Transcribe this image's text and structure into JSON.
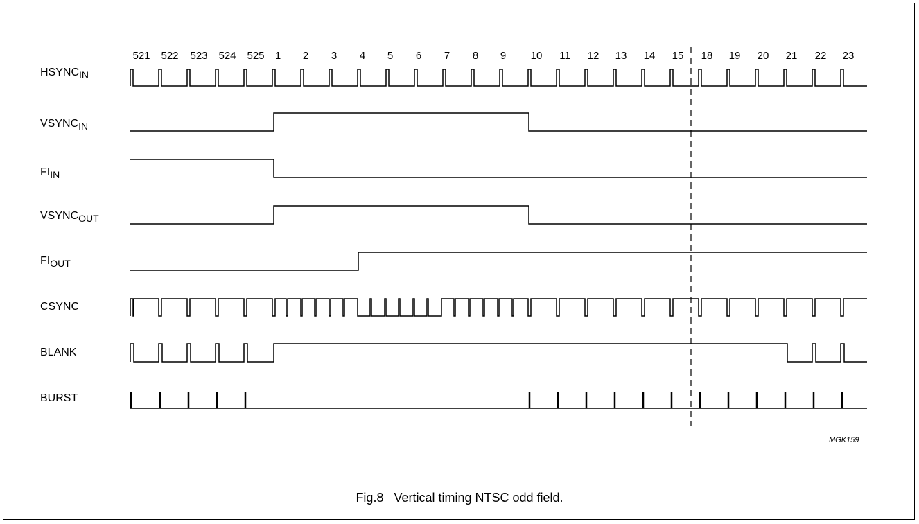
{
  "figure": {
    "caption": "Fig.8   Vertical timing NTSC odd field.",
    "code": "MGK159"
  },
  "line_numbers": [
    "521",
    "522",
    "523",
    "524",
    "525",
    "1",
    "2",
    "3",
    "4",
    "5",
    "6",
    "7",
    "8",
    "9",
    "10",
    "11",
    "12",
    "13",
    "14",
    "15",
    "18",
    "19",
    "20",
    "21",
    "22",
    "23"
  ],
  "signals": [
    {
      "name": "HSYNC",
      "sub": "IN"
    },
    {
      "name": "VSYNC",
      "sub": "IN"
    },
    {
      "name": "FI",
      "sub": "IN"
    },
    {
      "name": "VSYNC",
      "sub": "OUT"
    },
    {
      "name": "FI",
      "sub": "OUT"
    },
    {
      "name": "CSYNC",
      "sub": ""
    },
    {
      "name": "BLANK",
      "sub": ""
    },
    {
      "name": "BURST",
      "sub": ""
    }
  ],
  "colors": {
    "line": "#000000",
    "background": "#ffffff"
  }
}
